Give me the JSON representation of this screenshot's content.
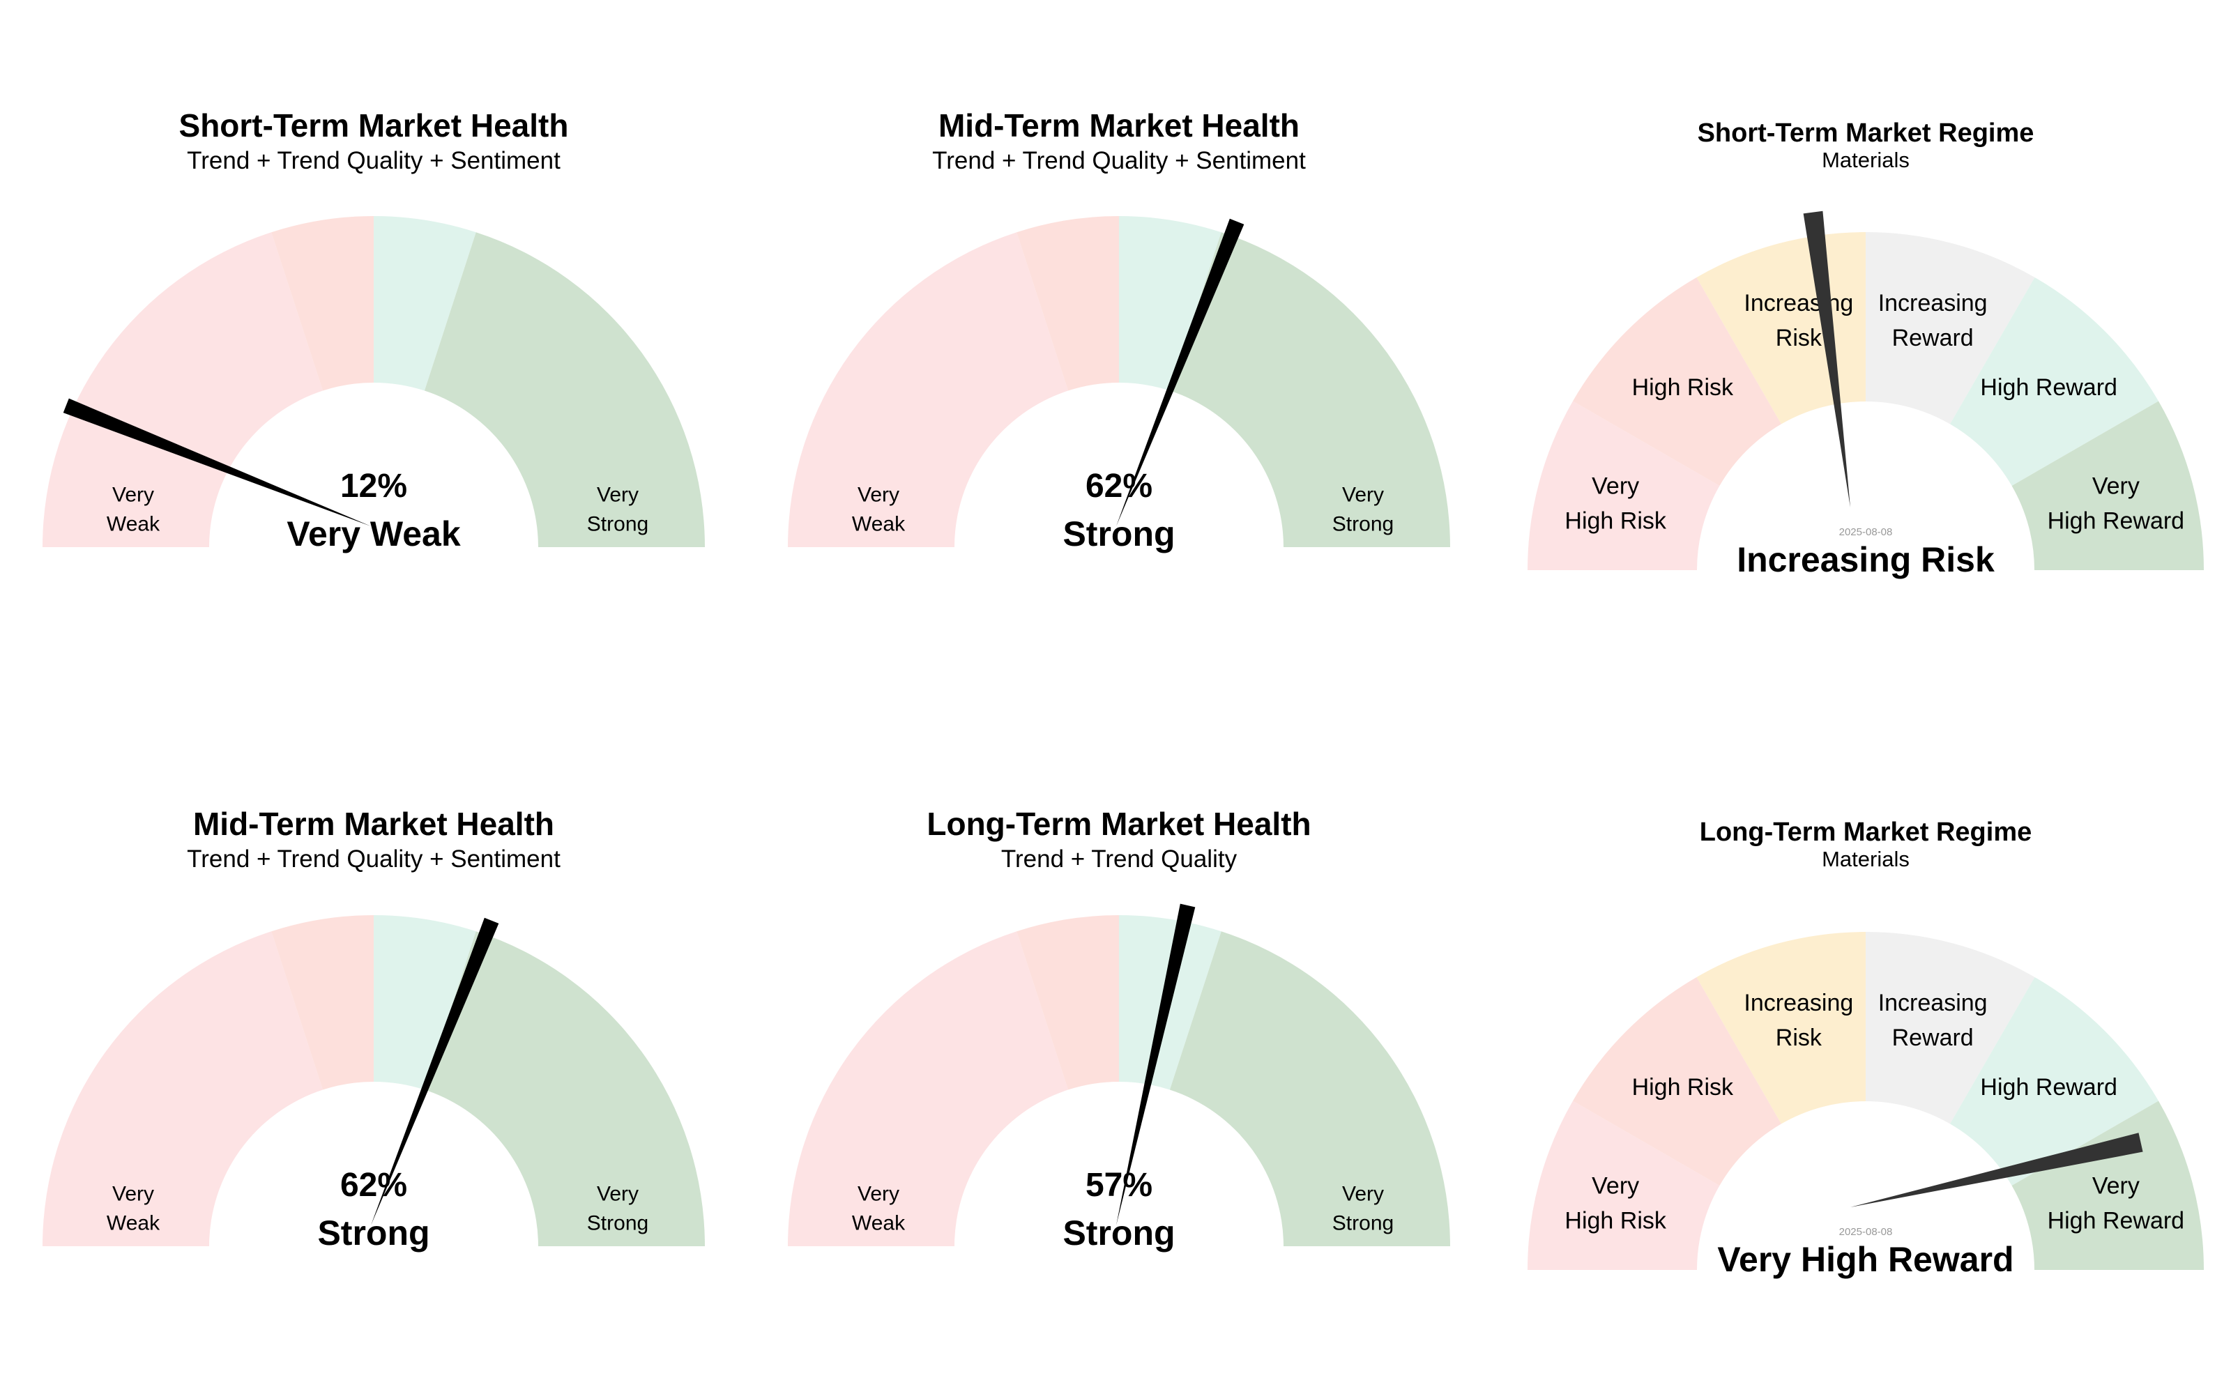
{
  "chart_data": [
    {
      "type": "gauge",
      "title": "Short-Term Market Health",
      "subtitle": "Trend + Trend Quality + Sentiment",
      "value_label": "12%",
      "status": "Very Weak",
      "value_pct": 12,
      "zones": [
        {
          "from": 0,
          "to": 40,
          "color": "#fde3e4"
        },
        {
          "from": 40,
          "to": 50,
          "color": "#fde0dc"
        },
        {
          "from": 50,
          "to": 60,
          "color": "#dff3ec"
        },
        {
          "from": 60,
          "to": 100,
          "color": "#cfe2cf"
        }
      ],
      "end_labels": [
        {
          "side": "left",
          "lines": [
            "Very",
            "Weak"
          ]
        },
        {
          "side": "right",
          "lines": [
            "Very",
            "Strong"
          ]
        }
      ]
    },
    {
      "type": "gauge",
      "title": "Mid-Term Market Health",
      "subtitle": "Trend + Trend Quality + Sentiment",
      "value_label": "62%",
      "status": "Strong",
      "value_pct": 62,
      "zones": [
        {
          "from": 0,
          "to": 40,
          "color": "#fde3e4"
        },
        {
          "from": 40,
          "to": 50,
          "color": "#fde0dc"
        },
        {
          "from": 50,
          "to": 60,
          "color": "#dff3ec"
        },
        {
          "from": 60,
          "to": 100,
          "color": "#cfe2cf"
        }
      ],
      "end_labels": [
        {
          "side": "left",
          "lines": [
            "Very",
            "Weak"
          ]
        },
        {
          "side": "right",
          "lines": [
            "Very",
            "Strong"
          ]
        }
      ]
    },
    {
      "type": "regime-gauge",
      "title": "Short-Term Market Regime",
      "subtitle": "Materials",
      "date": "2025-08-08",
      "status": "Increasing Risk",
      "needle_pct": 46,
      "segments": [
        {
          "lines": [
            "Very",
            "High Risk"
          ],
          "color": "#fde3e4"
        },
        {
          "lines": [
            "High Risk"
          ],
          "color": "#fde0dc"
        },
        {
          "lines": [
            "Increasing",
            "Risk"
          ],
          "color": "#fdeecf"
        },
        {
          "lines": [
            "Increasing",
            "Reward"
          ],
          "color": "#f0f0f0"
        },
        {
          "lines": [
            "High Reward"
          ],
          "color": "#dff3ec"
        },
        {
          "lines": [
            "Very",
            "High Reward"
          ],
          "color": "#cfe2cf"
        }
      ]
    },
    {
      "type": "gauge",
      "title": "Mid-Term Market Health",
      "subtitle": "Trend + Trend Quality + Sentiment",
      "value_label": "62%",
      "status": "Strong",
      "value_pct": 62,
      "zones": [
        {
          "from": 0,
          "to": 40,
          "color": "#fde3e4"
        },
        {
          "from": 40,
          "to": 50,
          "color": "#fde0dc"
        },
        {
          "from": 50,
          "to": 60,
          "color": "#dff3ec"
        },
        {
          "from": 60,
          "to": 100,
          "color": "#cfe2cf"
        }
      ],
      "end_labels": [
        {
          "side": "left",
          "lines": [
            "Very",
            "Weak"
          ]
        },
        {
          "side": "right",
          "lines": [
            "Very",
            "Strong"
          ]
        }
      ]
    },
    {
      "type": "gauge",
      "title": "Long-Term Market Health",
      "subtitle": "Trend + Trend Quality",
      "value_label": "57%",
      "status": "Strong",
      "value_pct": 57,
      "zones": [
        {
          "from": 0,
          "to": 40,
          "color": "#fde3e4"
        },
        {
          "from": 40,
          "to": 50,
          "color": "#fde0dc"
        },
        {
          "from": 50,
          "to": 60,
          "color": "#dff3ec"
        },
        {
          "from": 60,
          "to": 100,
          "color": "#cfe2cf"
        }
      ],
      "end_labels": [
        {
          "side": "left",
          "lines": [
            "Very",
            "Weak"
          ]
        },
        {
          "side": "right",
          "lines": [
            "Very",
            "Strong"
          ]
        }
      ]
    },
    {
      "type": "regime-gauge",
      "title": "Long-Term Market Regime",
      "subtitle": "Materials",
      "date": "2025-08-08",
      "status": "Very High Reward",
      "needle_pct": 93,
      "segments": [
        {
          "lines": [
            "Very",
            "High Risk"
          ],
          "color": "#fde3e4"
        },
        {
          "lines": [
            "High Risk"
          ],
          "color": "#fde0dc"
        },
        {
          "lines": [
            "Increasing",
            "Risk"
          ],
          "color": "#fdeecf"
        },
        {
          "lines": [
            "Increasing",
            "Reward"
          ],
          "color": "#f0f0f0"
        },
        {
          "lines": [
            "High Reward"
          ],
          "color": "#dff3ec"
        },
        {
          "lines": [
            "Very",
            "High Reward"
          ],
          "color": "#cfe2cf"
        }
      ]
    }
  ],
  "colors": {
    "needle_health": "#000000",
    "needle_regime": "#333333",
    "text": "#000000",
    "date_text": "#999999"
  }
}
